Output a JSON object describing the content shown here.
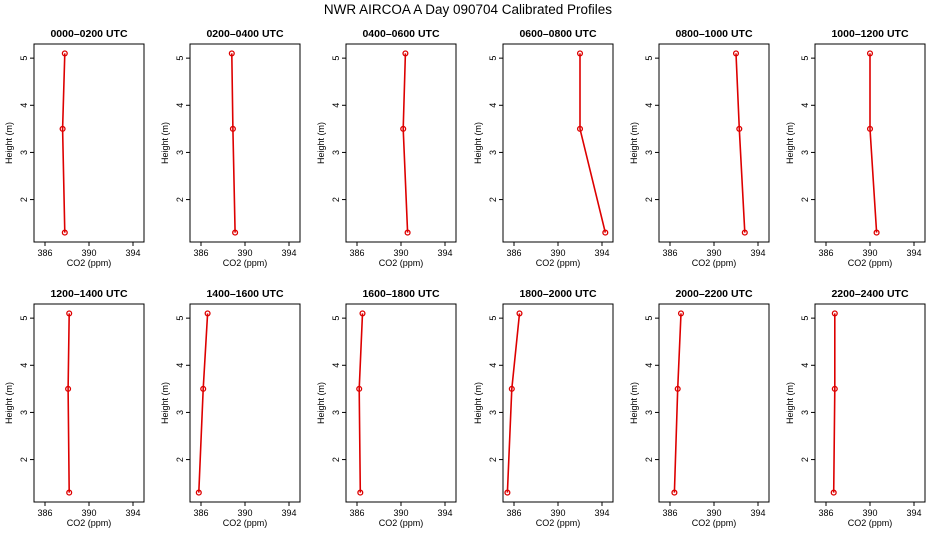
{
  "title": "NWR AIRCOA A  Day 090704  Calibrated Profiles",
  "xlabel": "CO2 (ppm)",
  "ylabel": "Height (m)",
  "colors": {
    "series": "#dd0000",
    "axis": "#000000",
    "background": "#ffffff"
  },
  "chart_data": [
    {
      "type": "line",
      "title": "0000–0200 UTC",
      "xlabel": "CO2 (ppm)",
      "ylabel": "Height (m)",
      "xlim": [
        385,
        395
      ],
      "ylim": [
        1.1,
        5.3
      ],
      "xticks": [
        386,
        390,
        394
      ],
      "yticks": [
        2,
        3,
        4,
        5
      ],
      "x": [
        387.8,
        387.6,
        387.8
      ],
      "y": [
        1.3,
        3.5,
        5.1
      ]
    },
    {
      "type": "line",
      "title": "0200–0400 UTC",
      "xlabel": "CO2 (ppm)",
      "ylabel": "Height (m)",
      "xlim": [
        385,
        395
      ],
      "ylim": [
        1.1,
        5.3
      ],
      "xticks": [
        386,
        390,
        394
      ],
      "yticks": [
        2,
        3,
        4,
        5
      ],
      "x": [
        389.1,
        388.9,
        388.8
      ],
      "y": [
        1.3,
        3.5,
        5.1
      ]
    },
    {
      "type": "line",
      "title": "0400–0600 UTC",
      "xlabel": "CO2 (ppm)",
      "ylabel": "Height (m)",
      "xlim": [
        385,
        395
      ],
      "ylim": [
        1.1,
        5.3
      ],
      "xticks": [
        386,
        390,
        394
      ],
      "yticks": [
        2,
        3,
        4,
        5
      ],
      "x": [
        390.6,
        390.2,
        390.4
      ],
      "y": [
        1.3,
        3.5,
        5.1
      ]
    },
    {
      "type": "line",
      "title": "0600–0800 UTC",
      "xlabel": "CO2 (ppm)",
      "ylabel": "Height (m)",
      "xlim": [
        385,
        395
      ],
      "ylim": [
        1.1,
        5.3
      ],
      "xticks": [
        386,
        390,
        394
      ],
      "yticks": [
        2,
        3,
        4,
        5
      ],
      "x": [
        394.3,
        392.0,
        392.0
      ],
      "y": [
        1.3,
        3.5,
        5.1
      ]
    },
    {
      "type": "line",
      "title": "0800–1000 UTC",
      "xlabel": "CO2 (ppm)",
      "ylabel": "Height (m)",
      "xlim": [
        385,
        395
      ],
      "ylim": [
        1.1,
        5.3
      ],
      "xticks": [
        386,
        390,
        394
      ],
      "yticks": [
        2,
        3,
        4,
        5
      ],
      "x": [
        392.8,
        392.3,
        392.0
      ],
      "y": [
        1.3,
        3.5,
        5.1
      ]
    },
    {
      "type": "line",
      "title": "1000–1200 UTC",
      "xlabel": "CO2 (ppm)",
      "ylabel": "Height (m)",
      "xlim": [
        385,
        395
      ],
      "ylim": [
        1.1,
        5.3
      ],
      "xticks": [
        386,
        390,
        394
      ],
      "yticks": [
        2,
        3,
        4,
        5
      ],
      "x": [
        390.6,
        390.0,
        390.0
      ],
      "y": [
        1.3,
        3.5,
        5.1
      ]
    },
    {
      "type": "line",
      "title": "1200–1400 UTC",
      "xlabel": "CO2 (ppm)",
      "ylabel": "Height (m)",
      "xlim": [
        385,
        395
      ],
      "ylim": [
        1.1,
        5.3
      ],
      "xticks": [
        386,
        390,
        394
      ],
      "yticks": [
        2,
        3,
        4,
        5
      ],
      "x": [
        388.2,
        388.1,
        388.2
      ],
      "y": [
        1.3,
        3.5,
        5.1
      ]
    },
    {
      "type": "line",
      "title": "1400–1600 UTC",
      "xlabel": "CO2 (ppm)",
      "ylabel": "Height (m)",
      "xlim": [
        385,
        395
      ],
      "ylim": [
        1.1,
        5.3
      ],
      "xticks": [
        386,
        390,
        394
      ],
      "yticks": [
        2,
        3,
        4,
        5
      ],
      "x": [
        385.8,
        386.2,
        386.6
      ],
      "y": [
        1.3,
        3.5,
        5.1
      ]
    },
    {
      "type": "line",
      "title": "1600–1800 UTC",
      "xlabel": "CO2 (ppm)",
      "ylabel": "Height (m)",
      "xlim": [
        385,
        395
      ],
      "ylim": [
        1.1,
        5.3
      ],
      "xticks": [
        386,
        390,
        394
      ],
      "yticks": [
        2,
        3,
        4,
        5
      ],
      "x": [
        386.3,
        386.2,
        386.5
      ],
      "y": [
        1.3,
        3.5,
        5.1
      ]
    },
    {
      "type": "line",
      "title": "1800–2000 UTC",
      "xlabel": "CO2 (ppm)",
      "ylabel": "Height (m)",
      "xlim": [
        385,
        395
      ],
      "ylim": [
        1.1,
        5.3
      ],
      "xticks": [
        386,
        390,
        394
      ],
      "yticks": [
        2,
        3,
        4,
        5
      ],
      "x": [
        385.4,
        385.8,
        386.5
      ],
      "y": [
        1.3,
        3.5,
        5.1
      ]
    },
    {
      "type": "line",
      "title": "2000–2200 UTC",
      "xlabel": "CO2 (ppm)",
      "ylabel": "Height (m)",
      "xlim": [
        385,
        395
      ],
      "ylim": [
        1.1,
        5.3
      ],
      "xticks": [
        386,
        390,
        394
      ],
      "yticks": [
        2,
        3,
        4,
        5
      ],
      "x": [
        386.4,
        386.7,
        387.0
      ],
      "y": [
        1.3,
        3.5,
        5.1
      ]
    },
    {
      "type": "line",
      "title": "2200–2400 UTC",
      "xlabel": "CO2 (ppm)",
      "ylabel": "Height (m)",
      "xlim": [
        385,
        395
      ],
      "ylim": [
        1.1,
        5.3
      ],
      "xticks": [
        386,
        390,
        394
      ],
      "yticks": [
        2,
        3,
        4,
        5
      ],
      "x": [
        386.7,
        386.8,
        386.8
      ],
      "y": [
        1.3,
        3.5,
        5.1
      ]
    }
  ]
}
